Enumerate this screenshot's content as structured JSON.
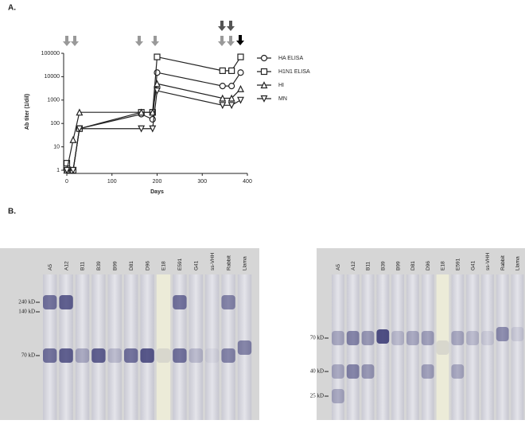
{
  "chart_data": {
    "type": "line",
    "panel_label": "A.",
    "x_label": "Days",
    "y_label": "Ab titer (1/dil)",
    "log_y": true,
    "x": [
      0,
      14,
      28,
      165,
      190,
      200,
      345,
      365,
      385
    ],
    "series": [
      {
        "name": "HA ELISA",
        "marker": "circle",
        "color": "#222222",
        "values": [
          1,
          1,
          60,
          250,
          150,
          15000,
          4000,
          4000,
          15000
        ]
      },
      {
        "name": "H1N1 ELISA",
        "marker": "square",
        "color": "#222222",
        "values": [
          2,
          1,
          60,
          300,
          300,
          70000,
          18000,
          18000,
          70000
        ]
      },
      {
        "name": "HI",
        "marker": "triangle",
        "color": "#222222",
        "values": [
          1,
          20,
          300,
          300,
          300,
          5000,
          1200,
          1200,
          3000
        ]
      },
      {
        "name": "MN",
        "marker": "triangle-down",
        "color": "#222222",
        "values": [
          1,
          1,
          60,
          60,
          60,
          2500,
          600,
          600,
          1000
        ]
      }
    ],
    "xlim": [
      0,
      400
    ],
    "xticks": [
      0,
      100,
      200,
      300,
      400
    ],
    "ylim": [
      1,
      100000
    ],
    "yticks": [
      1,
      10,
      100,
      1000,
      10000,
      100000
    ]
  },
  "panel_b": {
    "label": "B.",
    "blots": [
      {
        "lanes": [
          "A5",
          "A12",
          "B11",
          "B39",
          "B99",
          "D81",
          "D96",
          "E18",
          "E591",
          "G41",
          "ss-VHH",
          "Rabbit",
          "Llama"
        ],
        "markers": [
          "240 kD",
          "140 kD",
          "70 kD"
        ]
      },
      {
        "lanes": [
          "A5",
          "A12",
          "B11",
          "B39",
          "B99",
          "D81",
          "D96",
          "E18",
          "E591",
          "G41",
          "ss-VHH",
          "Rabbit",
          "Llama"
        ],
        "markers": [
          "70 kD",
          "40 kD",
          "25 kD"
        ]
      }
    ]
  }
}
